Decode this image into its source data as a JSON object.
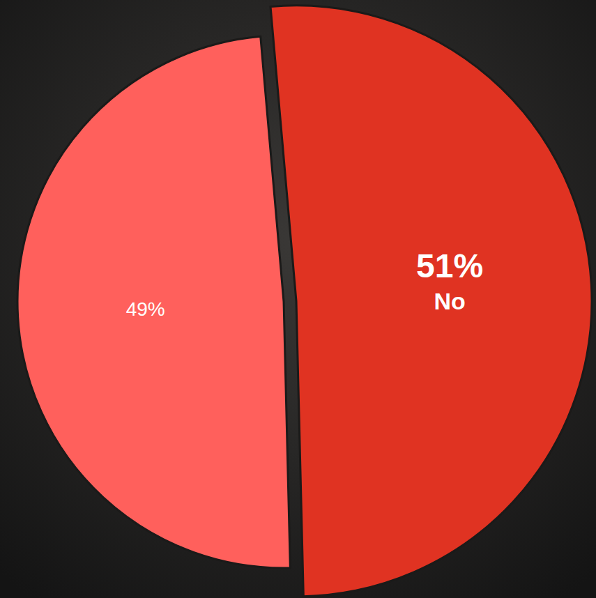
{
  "chart_data": {
    "type": "pie",
    "categories": [
      "No",
      null
    ],
    "values": [
      51,
      49
    ],
    "value_labels": [
      "51%",
      "49%"
    ],
    "colors": [
      "#e03322",
      "#ff605c"
    ],
    "data_labels": true
  }
}
